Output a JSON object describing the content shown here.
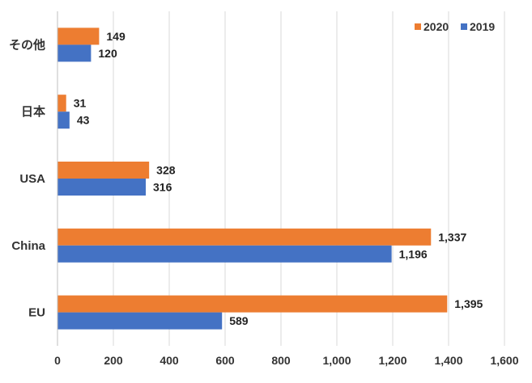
{
  "chart_data": {
    "type": "bar",
    "orientation": "horizontal",
    "title": "",
    "xlabel": "",
    "ylabel": "",
    "categories": [
      "その他",
      "日本",
      "USA",
      "China",
      "EU"
    ],
    "series": [
      {
        "name": "2020",
        "color": "#ED7D31",
        "values": [
          149,
          31,
          328,
          1337,
          1395
        ],
        "labels": [
          "149",
          "31",
          "328",
          "1,337",
          "1,395"
        ]
      },
      {
        "name": "2019",
        "color": "#4472C4",
        "values": [
          120,
          43,
          316,
          1196,
          589
        ],
        "labels": [
          "120",
          "43",
          "316",
          "1,196",
          "589"
        ]
      }
    ],
    "xlim": [
      0,
      1600
    ],
    "xticks": [
      0,
      200,
      400,
      600,
      800,
      1000,
      1200,
      1400,
      1600
    ],
    "xtick_labels": [
      "0",
      "200",
      "400",
      "600",
      "800",
      "1,000",
      "1,200",
      "1,400",
      "1,600"
    ],
    "grid": true,
    "legend_position": "top-right"
  }
}
